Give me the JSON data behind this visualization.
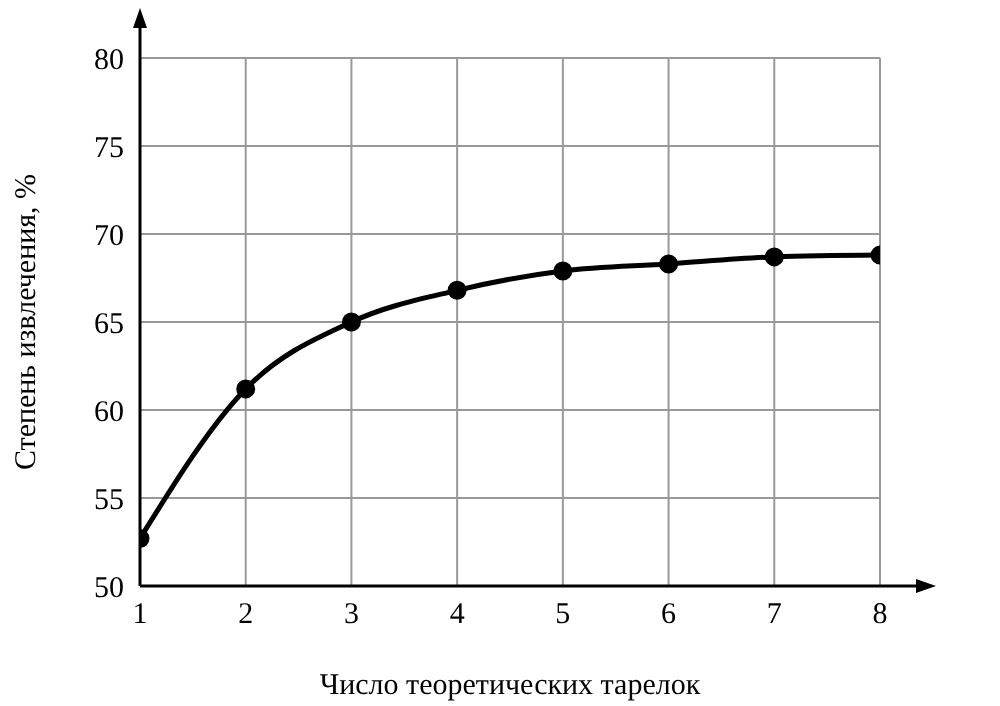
{
  "chart_data": {
    "type": "line",
    "xlabel": "Число теоретических тарелок",
    "ylabel": "Степень извлечения, %",
    "x": [
      1,
      2,
      3,
      4,
      5,
      6,
      7,
      8
    ],
    "series": [
      {
        "color": "#000000",
        "values": [
          52.7,
          61.2,
          65.0,
          66.8,
          67.9,
          68.3,
          68.7,
          68.8
        ]
      }
    ],
    "xlim": [
      1,
      8
    ],
    "xticks": [
      1,
      2,
      3,
      4,
      5,
      6,
      7,
      8
    ],
    "ylim": [
      50,
      80
    ],
    "yticks": [
      50,
      55,
      60,
      65,
      70,
      75,
      80
    ],
    "grid": true,
    "marker": "circle",
    "line_style": "solid",
    "legend": false
  }
}
